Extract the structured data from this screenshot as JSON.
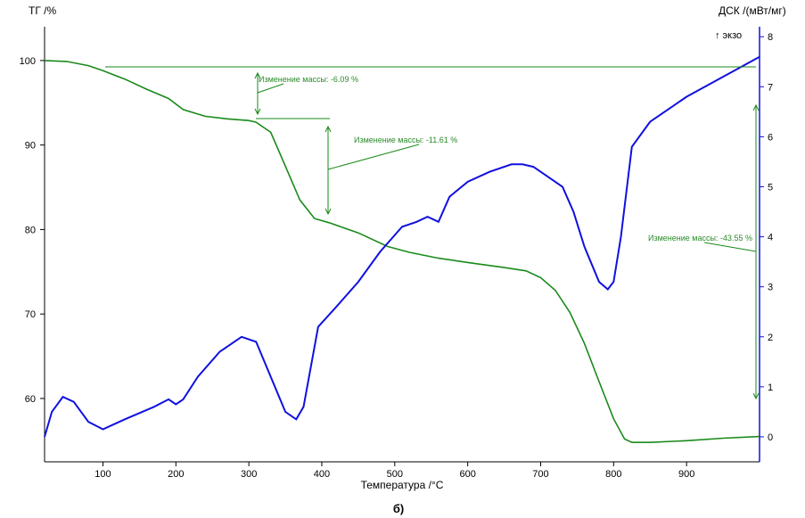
{
  "chart_data": {
    "type": "line",
    "caption": "б)",
    "xlabel": "Температура /°C",
    "ylabel_left": "ТГ /%",
    "ylabel_right": "ДСК /(мВт/мг)",
    "exo_label": "↑ экзо",
    "xlim": [
      20,
      1000
    ],
    "ylim_left": [
      52.5,
      104
    ],
    "ylim_right": [
      -0.5,
      8.2
    ],
    "x_ticks": [
      100,
      200,
      300,
      400,
      500,
      600,
      700,
      800,
      900
    ],
    "y_ticks_left": [
      60,
      70,
      80,
      90,
      100
    ],
    "y_ticks_right": [
      0,
      1,
      2,
      3,
      4,
      5,
      6,
      7,
      8
    ],
    "grid": false,
    "colors": {
      "tg": "#1a8a1a",
      "dsc": "#1010e0",
      "axis_right": "#1010e0",
      "axis_left": "#000000"
    },
    "series": [
      {
        "axis": "left",
        "color": "#1a8a1a",
        "x": [
          20,
          50,
          80,
          100,
          130,
          160,
          190,
          210,
          240,
          270,
          300,
          310,
          330,
          350,
          370,
          390,
          410,
          450,
          490,
          520,
          560,
          600,
          650,
          680,
          700,
          720,
          740,
          760,
          780,
          800,
          815,
          825,
          850,
          900,
          950,
          1000
        ],
        "y": [
          100,
          99.9,
          99.4,
          98.8,
          97.8,
          96.6,
          95.5,
          94.2,
          93.4,
          93.1,
          92.9,
          92.7,
          91.5,
          87.5,
          83.5,
          81.3,
          80.8,
          79.6,
          78.0,
          77.3,
          76.6,
          76.1,
          75.5,
          75.1,
          74.3,
          72.8,
          70.2,
          66.5,
          62.0,
          57.6,
          55.2,
          54.8,
          54.8,
          55.0,
          55.3,
          55.5
        ]
      },
      {
        "axis": "right",
        "color": "#1010e0",
        "x": [
          20,
          30,
          45,
          60,
          80,
          100,
          130,
          170,
          190,
          200,
          210,
          230,
          260,
          290,
          310,
          330,
          350,
          365,
          375,
          385,
          395,
          420,
          450,
          480,
          510,
          530,
          545,
          560,
          575,
          600,
          630,
          660,
          675,
          690,
          710,
          730,
          745,
          760,
          780,
          792,
          800,
          810,
          825,
          850,
          900,
          950,
          1000
        ],
        "y": [
          0.0,
          0.5,
          0.8,
          0.7,
          0.3,
          0.15,
          0.35,
          0.6,
          0.75,
          0.65,
          0.75,
          1.2,
          1.7,
          2.0,
          1.9,
          1.2,
          0.5,
          0.35,
          0.6,
          1.4,
          2.2,
          2.6,
          3.1,
          3.7,
          4.2,
          4.3,
          4.4,
          4.3,
          4.8,
          5.1,
          5.3,
          5.45,
          5.45,
          5.4,
          5.2,
          5.0,
          4.5,
          3.8,
          3.1,
          2.95,
          3.1,
          4.0,
          5.8,
          6.3,
          6.8,
          7.2,
          7.6
        ]
      }
    ],
    "annotations": [
      {
        "text": "Изменение массы: -6.09 %"
      },
      {
        "text": "Изменение массы: -11.61 %"
      },
      {
        "text": "Изменение массы: -43.55 %"
      }
    ]
  }
}
